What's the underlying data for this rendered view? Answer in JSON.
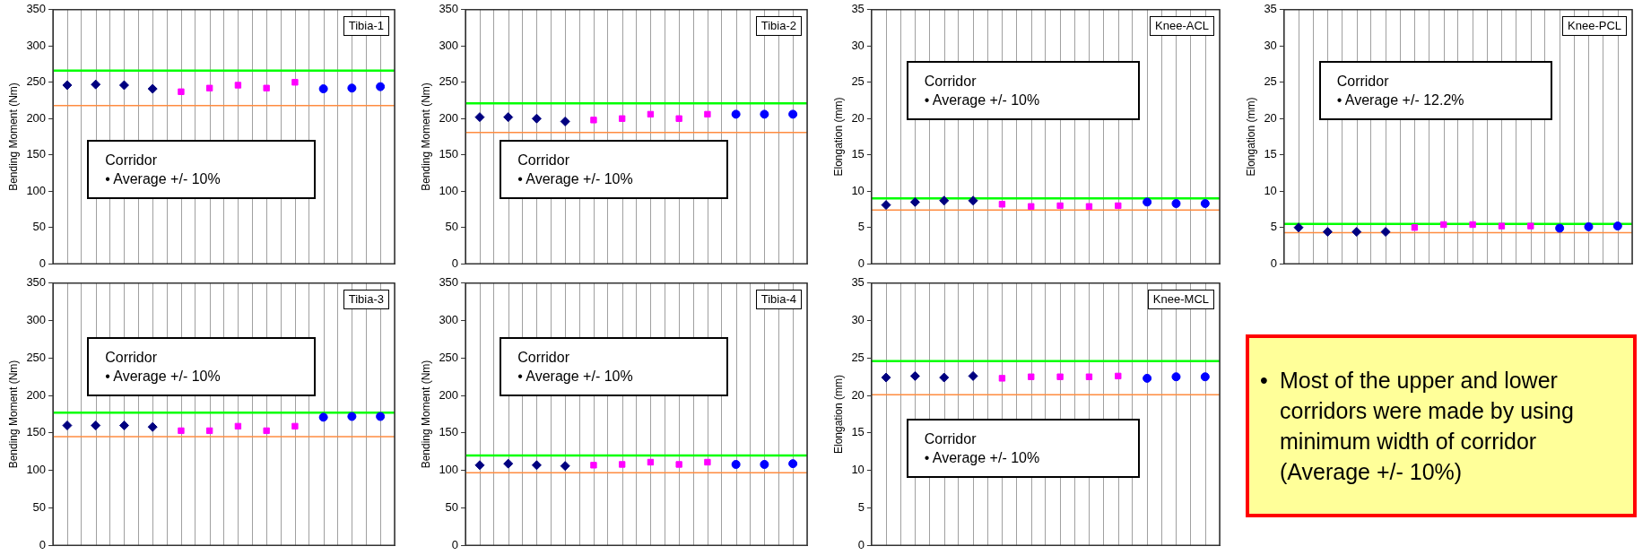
{
  "chart_data": [
    {
      "type": "scatter",
      "title": "Tibia-1",
      "ylabel": "Bending Moment (Nm)",
      "annotations": [
        "Corridor",
        "• Average +/- 10%"
      ],
      "categories": [
        null,
        null,
        null,
        null,
        null,
        null,
        null,
        null,
        null,
        null,
        null,
        null
      ],
      "ylim": [
        0,
        350
      ],
      "yticks": [
        0,
        50,
        100,
        150,
        200,
        250,
        300,
        350
      ],
      "grid": "x",
      "tick_labels": "y",
      "series": [
        {
          "color": "#000080",
          "marker": "diamond",
          "values": [
            246,
            247,
            246,
            241,
            null,
            null,
            null,
            null,
            null,
            null,
            null,
            null
          ]
        },
        {
          "color": "#ff00ff",
          "marker": "square",
          "values": [
            null,
            null,
            null,
            null,
            237,
            242,
            246,
            242,
            250,
            null,
            null,
            null
          ]
        },
        {
          "color": "#0000ff",
          "marker": "circle",
          "values": [
            null,
            null,
            null,
            null,
            null,
            null,
            null,
            null,
            null,
            241,
            242,
            244
          ]
        }
      ],
      "ref_lines": [
        {
          "axis": "y",
          "value": 266,
          "color": "#00ff00"
        },
        {
          "axis": "y",
          "value": 218,
          "color": "#ff8c40"
        }
      ]
    },
    {
      "type": "scatter",
      "title": "Tibia-2",
      "ylabel": "Bending Moment (Nm)",
      "annotations": [
        "Corridor",
        "• Average +/- 10%"
      ],
      "categories": [
        null,
        null,
        null,
        null,
        null,
        null,
        null,
        null,
        null,
        null,
        null,
        null
      ],
      "ylim": [
        0,
        350
      ],
      "yticks": [
        0,
        50,
        100,
        150,
        200,
        250,
        300,
        350
      ],
      "grid": "x",
      "tick_labels": "y",
      "series": [
        {
          "color": "#000080",
          "marker": "diamond",
          "values": [
            202,
            202,
            200,
            196,
            null,
            null,
            null,
            null,
            null,
            null,
            null,
            null
          ]
        },
        {
          "color": "#ff00ff",
          "marker": "square",
          "values": [
            null,
            null,
            null,
            null,
            198,
            200,
            206,
            200,
            206,
            null,
            null,
            null
          ]
        },
        {
          "color": "#0000ff",
          "marker": "circle",
          "values": [
            null,
            null,
            null,
            null,
            null,
            null,
            null,
            null,
            null,
            206,
            206,
            206
          ]
        }
      ],
      "ref_lines": [
        {
          "axis": "y",
          "value": 221,
          "color": "#00ff00"
        },
        {
          "axis": "y",
          "value": 181,
          "color": "#ff8c40"
        }
      ]
    },
    {
      "type": "scatter",
      "title": "Knee-ACL",
      "ylabel": "Elongation (mm)",
      "annotations": [
        "Corridor",
        "• Average +/- 10%"
      ],
      "categories": [
        null,
        null,
        null,
        null,
        null,
        null,
        null,
        null,
        null,
        null,
        null,
        null
      ],
      "ylim": [
        0,
        35
      ],
      "yticks": [
        0,
        5,
        10,
        15,
        20,
        25,
        30,
        35
      ],
      "grid": "x",
      "tick_labels": "y",
      "series": [
        {
          "color": "#000080",
          "marker": "diamond",
          "values": [
            8.1,
            8.5,
            8.7,
            8.7,
            null,
            null,
            null,
            null,
            null,
            null,
            null,
            null
          ]
        },
        {
          "color": "#ff00ff",
          "marker": "square",
          "values": [
            null,
            null,
            null,
            null,
            8.2,
            7.9,
            8.0,
            7.9,
            8.0,
            null,
            null,
            null
          ]
        },
        {
          "color": "#0000ff",
          "marker": "circle",
          "values": [
            null,
            null,
            null,
            null,
            null,
            null,
            null,
            null,
            null,
            8.5,
            8.3,
            8.3
          ]
        }
      ],
      "ref_lines": [
        {
          "axis": "y",
          "value": 9.0,
          "color": "#00ff00"
        },
        {
          "axis": "y",
          "value": 7.4,
          "color": "#ff8c40"
        }
      ]
    },
    {
      "type": "scatter",
      "title": "Knee-PCL",
      "ylabel": "Elongation (mm)",
      "annotations": [
        "Corridor",
        "• Average +/- 12.2%"
      ],
      "categories": [
        null,
        null,
        null,
        null,
        null,
        null,
        null,
        null,
        null,
        null,
        null,
        null
      ],
      "ylim": [
        0,
        35
      ],
      "yticks": [
        0,
        5,
        10,
        15,
        20,
        25,
        30,
        35
      ],
      "grid": "x",
      "tick_labels": "y",
      "series": [
        {
          "color": "#000080",
          "marker": "diamond",
          "values": [
            5.0,
            4.4,
            4.4,
            4.4,
            null,
            null,
            null,
            null,
            null,
            null,
            null,
            null
          ]
        },
        {
          "color": "#ff00ff",
          "marker": "square",
          "values": [
            null,
            null,
            null,
            null,
            5.0,
            5.4,
            5.4,
            5.2,
            5.2,
            null,
            null,
            null
          ]
        },
        {
          "color": "#0000ff",
          "marker": "circle",
          "values": [
            null,
            null,
            null,
            null,
            null,
            null,
            null,
            null,
            null,
            4.9,
            5.1,
            5.2
          ]
        }
      ],
      "ref_lines": [
        {
          "axis": "y",
          "value": 5.5,
          "color": "#00ff00"
        },
        {
          "axis": "y",
          "value": 4.3,
          "color": "#ff8c40"
        }
      ]
    },
    {
      "type": "scatter",
      "title": "Tibia-3",
      "ylabel": "Bending Moment (Nm)",
      "annotations": [
        "Corridor",
        "• Average +/- 10%"
      ],
      "categories": [
        null,
        null,
        null,
        null,
        null,
        null,
        null,
        null,
        null,
        null,
        null,
        null
      ],
      "ylim": [
        0,
        350
      ],
      "yticks": [
        0,
        50,
        100,
        150,
        200,
        250,
        300,
        350
      ],
      "grid": "x",
      "tick_labels": "y",
      "series": [
        {
          "color": "#000080",
          "marker": "diamond",
          "values": [
            160,
            160,
            160,
            158,
            null,
            null,
            null,
            null,
            null,
            null,
            null,
            null
          ]
        },
        {
          "color": "#ff00ff",
          "marker": "square",
          "values": [
            null,
            null,
            null,
            null,
            153,
            153,
            159,
            153,
            159,
            null,
            null,
            null
          ]
        },
        {
          "color": "#0000ff",
          "marker": "circle",
          "values": [
            null,
            null,
            null,
            null,
            null,
            null,
            null,
            null,
            null,
            171,
            172,
            172
          ]
        }
      ],
      "ref_lines": [
        {
          "axis": "y",
          "value": 177,
          "color": "#00ff00"
        },
        {
          "axis": "y",
          "value": 145,
          "color": "#ff8c40"
        }
      ]
    },
    {
      "type": "scatter",
      "title": "Tibia-4",
      "ylabel": "Bending Moment (Nm)",
      "annotations": [
        "Corridor",
        "• Average +/- 10%"
      ],
      "categories": [
        null,
        null,
        null,
        null,
        null,
        null,
        null,
        null,
        null,
        null,
        null,
        null
      ],
      "ylim": [
        0,
        350
      ],
      "yticks": [
        0,
        50,
        100,
        150,
        200,
        250,
        300,
        350
      ],
      "grid": "x",
      "tick_labels": "y",
      "series": [
        {
          "color": "#000080",
          "marker": "diamond",
          "values": [
            107,
            109,
            107,
            106,
            null,
            null,
            null,
            null,
            null,
            null,
            null,
            null
          ]
        },
        {
          "color": "#ff00ff",
          "marker": "square",
          "values": [
            null,
            null,
            null,
            null,
            107,
            108,
            111,
            108,
            111,
            null,
            null,
            null
          ]
        },
        {
          "color": "#0000ff",
          "marker": "circle",
          "values": [
            null,
            null,
            null,
            null,
            null,
            null,
            null,
            null,
            null,
            108,
            108,
            109
          ]
        }
      ],
      "ref_lines": [
        {
          "axis": "y",
          "value": 120,
          "color": "#00ff00"
        },
        {
          "axis": "y",
          "value": 97,
          "color": "#ff8c40"
        }
      ]
    },
    {
      "type": "scatter",
      "title": "Knee-MCL",
      "ylabel": "Elongation (mm)",
      "annotations": [
        "Corridor",
        "• Average +/- 10%"
      ],
      "categories": [
        null,
        null,
        null,
        null,
        null,
        null,
        null,
        null,
        null,
        null,
        null,
        null
      ],
      "ylim": [
        0,
        35
      ],
      "yticks": [
        0,
        5,
        10,
        15,
        20,
        25,
        30,
        35
      ],
      "grid": "x",
      "tick_labels": "y",
      "series": [
        {
          "color": "#000080",
          "marker": "diamond",
          "values": [
            22.4,
            22.6,
            22.4,
            22.6,
            null,
            null,
            null,
            null,
            null,
            null,
            null,
            null
          ]
        },
        {
          "color": "#ff00ff",
          "marker": "square",
          "values": [
            null,
            null,
            null,
            null,
            22.3,
            22.5,
            22.5,
            22.5,
            22.6,
            null,
            null,
            null
          ]
        },
        {
          "color": "#0000ff",
          "marker": "circle",
          "values": [
            null,
            null,
            null,
            null,
            null,
            null,
            null,
            null,
            null,
            22.3,
            22.5,
            22.5
          ]
        }
      ],
      "ref_lines": [
        {
          "axis": "y",
          "value": 24.6,
          "color": "#00ff00"
        },
        {
          "axis": "y",
          "value": 20.1,
          "color": "#ff8c40"
        }
      ]
    },
    {
      "type": "other",
      "annotations": [
        "•",
        "Most of the upper and lower corridors were made by using minimum width of corridor (Average +/- 10%)"
      ]
    }
  ]
}
